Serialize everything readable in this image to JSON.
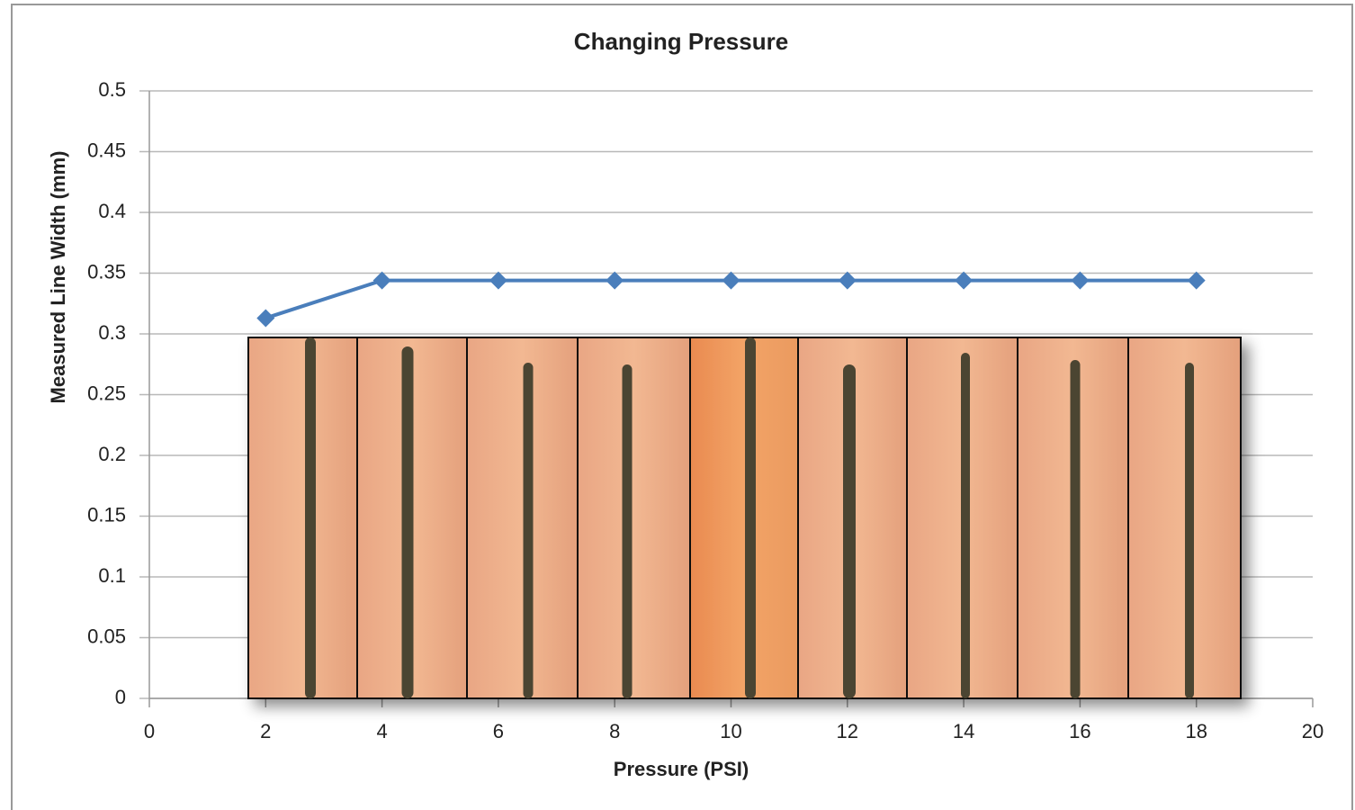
{
  "chart_data": {
    "type": "line",
    "title": "Changing Pressure",
    "x_label": "Pressure (PSI)",
    "y_label": "Measured  Line Width (mm)",
    "x": [
      2,
      4,
      6,
      8,
      10,
      12,
      14,
      16,
      18
    ],
    "values": [
      0.313,
      0.344,
      0.344,
      0.344,
      0.344,
      0.344,
      0.344,
      0.344,
      0.344
    ],
    "color": "#4a7ebb",
    "marker": "diamond",
    "xlim": [
      0,
      20
    ],
    "xticks": [
      0,
      2,
      4,
      6,
      8,
      10,
      12,
      14,
      16,
      18,
      20
    ],
    "ylim": [
      0,
      0.5
    ],
    "yticks": [
      0,
      0.05,
      0.1,
      0.15,
      0.2,
      0.25,
      0.3,
      0.35,
      0.4,
      0.45,
      0.5
    ],
    "grid": true
  }
}
